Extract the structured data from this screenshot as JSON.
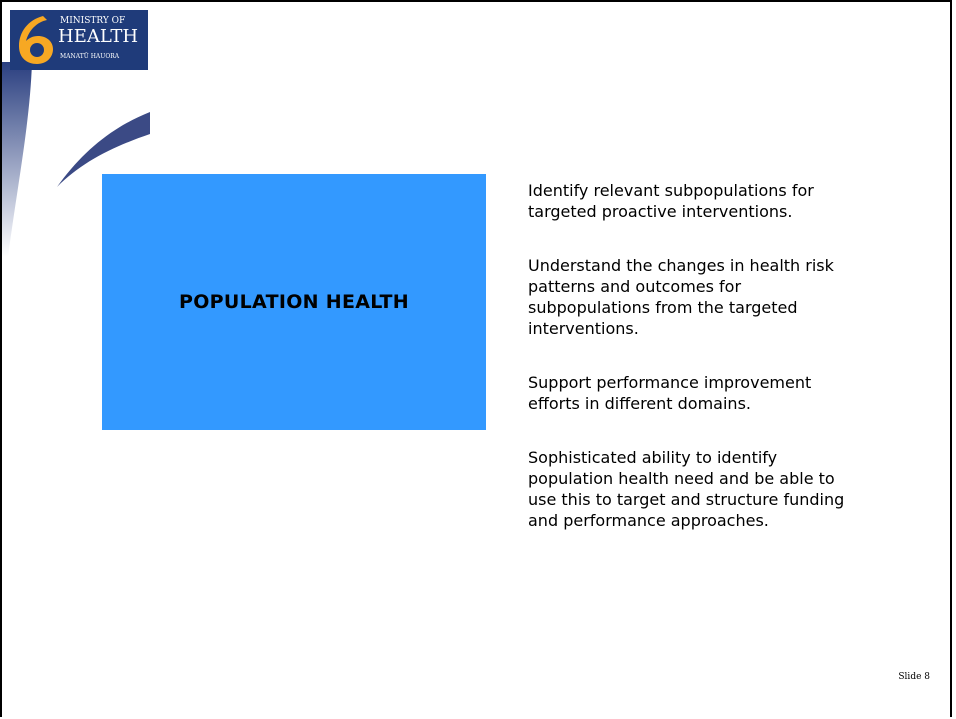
{
  "logo": {
    "line1": "MINISTRY OF",
    "line2": "HEALTH",
    "line3": "MANATŪ HAUORA"
  },
  "box": {
    "title": "POPULATION HEALTH"
  },
  "points": [
    "Identify relevant subpopulations for targeted proactive interventions.",
    "Understand the changes in health risk patterns and outcomes for subpopulations from the targeted interventions.",
    "Support performance improvement efforts in different domains.",
    "Sophisticated ability to identify population health need and be able to use this to target and structure funding and performance approaches."
  ],
  "footer": {
    "slide": "Slide 8"
  }
}
